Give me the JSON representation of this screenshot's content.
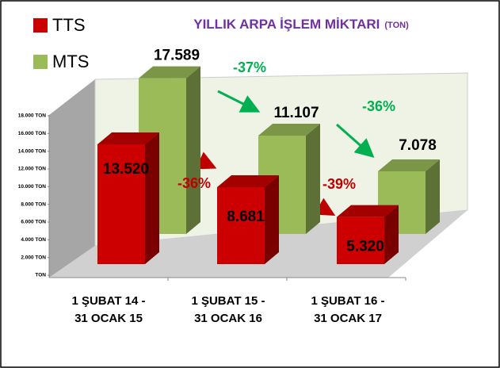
{
  "chart_data": {
    "type": "bar3d",
    "title": "YILLIK ARPA İŞLEM MİKTARI",
    "subtitle": "(TON)",
    "categories": [
      [
        "1 ŞUBAT 14 -",
        "31 OCAK 15"
      ],
      [
        "1 ŞUBAT 15 -",
        "31 OCAK 16"
      ],
      [
        "1 ŞUBAT 16 -",
        "31 OCAK 17"
      ]
    ],
    "series": [
      {
        "name": "TTS",
        "color": "#cc0000",
        "values": [
          13520,
          8681,
          5320
        ],
        "value_labels": [
          "13.520",
          "8.681",
          "5.320"
        ]
      },
      {
        "name": "MTS",
        "color": "#9bbb59",
        "values": [
          17589,
          11107,
          7078
        ],
        "value_labels": [
          "17.589",
          "11.107",
          "7.078"
        ]
      }
    ],
    "ylim": [
      0,
      18000
    ],
    "yticks": [
      {
        "value": 0,
        "label": "TON"
      },
      {
        "value": 2000,
        "label": "2.000 TON"
      },
      {
        "value": 4000,
        "label": "4.000 TON"
      },
      {
        "value": 6000,
        "label": "6.000 TON"
      },
      {
        "value": 8000,
        "label": "8.000 TON"
      },
      {
        "value": 10000,
        "label": "10.000 TON"
      },
      {
        "value": 12000,
        "label": "12.000 TON"
      },
      {
        "value": 14000,
        "label": "14.000 TON"
      },
      {
        "value": 16000,
        "label": "16.000 TON"
      },
      {
        "value": 18000,
        "label": "18.000 TON"
      }
    ],
    "annotations": [
      {
        "text": "-37%",
        "color": "#00b050"
      },
      {
        "text": "-36%",
        "color": "#00b050"
      },
      {
        "text": "-36%",
        "color": "#c00000"
      },
      {
        "text": "-39%",
        "color": "#c00000"
      }
    ],
    "legend": "top-left"
  }
}
